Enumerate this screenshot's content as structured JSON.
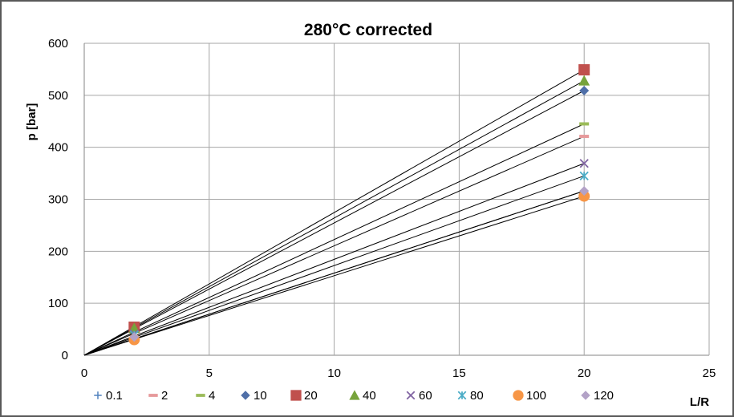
{
  "chart_data": {
    "type": "scatter",
    "title": "280°C corrected",
    "xlabel": "L/R",
    "ylabel": "p [bar]",
    "xlim": [
      0,
      25
    ],
    "ylim": [
      0,
      600
    ],
    "xticks": [
      0,
      5,
      10,
      15,
      20,
      25
    ],
    "yticks": [
      0,
      100,
      200,
      300,
      400,
      500,
      600
    ],
    "grid": true,
    "legend_position": "bottom",
    "trendlines": "linear through origin, black",
    "series": [
      {
        "name": "0.1",
        "marker": "plus",
        "color": "#4f81bd",
        "x": [
          2,
          20
        ],
        "y": [
          52,
          316
        ]
      },
      {
        "name": "2",
        "marker": "dash",
        "color": "#e6999b",
        "x": [
          2,
          20
        ],
        "y": [
          46,
          421
        ]
      },
      {
        "name": "4",
        "marker": "dash",
        "color": "#9bbb59",
        "x": [
          2,
          20
        ],
        "y": [
          47,
          445
        ]
      },
      {
        "name": "10",
        "marker": "diamond",
        "color": "#4f6fa8",
        "x": [
          2,
          20
        ],
        "y": [
          50,
          509
        ]
      },
      {
        "name": "20",
        "marker": "square",
        "color": "#c0504d",
        "x": [
          2,
          20
        ],
        "y": [
          54,
          549
        ]
      },
      {
        "name": "40",
        "marker": "triangle",
        "color": "#77a33b",
        "x": [
          2,
          20
        ],
        "y": [
          52,
          528
        ]
      },
      {
        "name": "60",
        "marker": "x",
        "color": "#8064a2",
        "x": [
          2,
          20
        ],
        "y": [
          41,
          369
        ]
      },
      {
        "name": "80",
        "marker": "star",
        "color": "#4bacc6",
        "x": [
          2,
          20
        ],
        "y": [
          39,
          345
        ]
      },
      {
        "name": "100",
        "marker": "circle",
        "color": "#f79646",
        "x": [
          2,
          20
        ],
        "y": [
          30,
          306
        ]
      },
      {
        "name": "120",
        "marker": "diamond",
        "color": "#b3a2c7",
        "x": [
          2,
          20
        ],
        "y": [
          35,
          316
        ]
      }
    ]
  }
}
